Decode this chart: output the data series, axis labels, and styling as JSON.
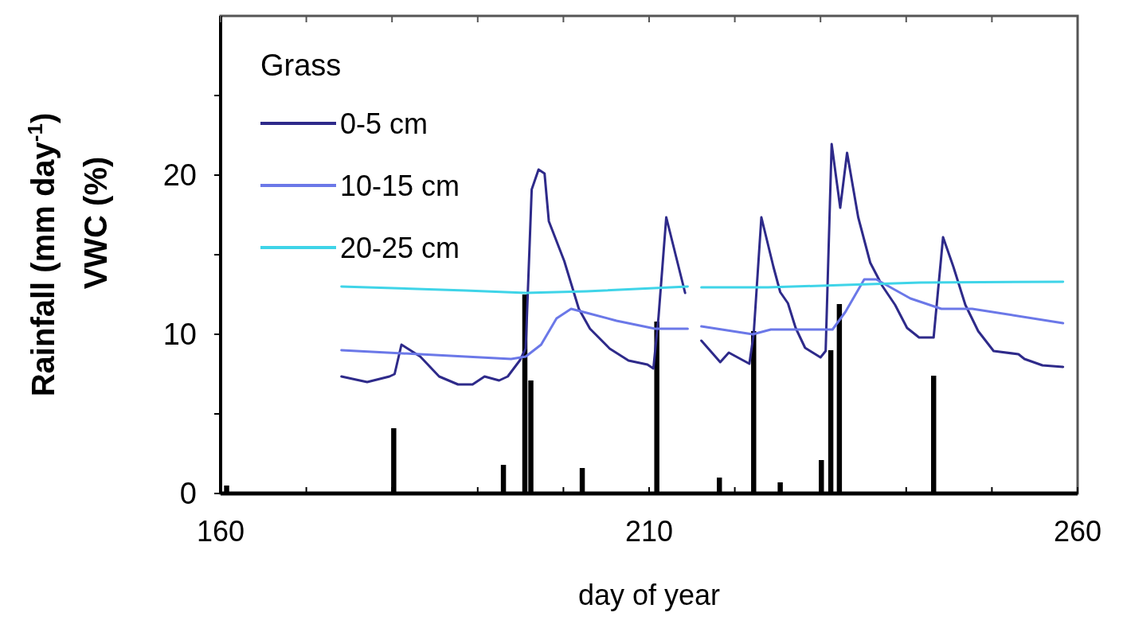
{
  "chart_data": {
    "type": "line",
    "legend_title": "Grass",
    "xlabel": "day of year",
    "ylabel": "Rainfall  (mm day$^{-1}$)\nVWC (%)",
    "xlim": [
      160,
      260
    ],
    "ylim": [
      0,
      30
    ],
    "xticks": [
      160,
      {
        "value": 170,
        "label": null
      },
      {
        "value": 180,
        "label": null
      },
      {
        "value": 190,
        "label": null
      },
      {
        "value": 200,
        "label": null
      },
      210,
      {
        "value": 220,
        "label": null
      },
      {
        "value": 230,
        "label": null
      },
      {
        "value": 240,
        "label": null
      },
      {
        "value": 250,
        "label": null
      },
      260
    ],
    "yticks": [
      0,
      {
        "value": 5,
        "label": null
      },
      10,
      {
        "value": 15,
        "label": null
      },
      20,
      {
        "value": 25,
        "label": null
      }
    ],
    "grid": false,
    "legend": "top left",
    "marker": "none",
    "line_style": "solid",
    "series": [
      {
        "type": "bar",
        "color": "#000000",
        "x": [
          160.7,
          180.2,
          193.0,
          195.5,
          196.2,
          202.2,
          210.9,
          218.2,
          222.2,
          225.3,
          230.1,
          231.2,
          232.2,
          243.2
        ],
        "values": [
          0.5,
          4.1,
          1.8,
          12.5,
          7.1,
          1.6,
          10.8,
          1.0,
          10.2,
          0.7,
          2.1,
          9.0,
          11.9,
          7.4
        ]
      },
      {
        "name": "0-5 cm",
        "color": "#2e2a8a",
        "x": [
          174.1,
          177.1,
          179.7,
          180.3,
          181.1,
          183.3,
          185.5,
          187.7,
          189.4,
          190.8,
          192.5,
          193.5,
          194.9,
          195.6,
          196.3,
          197.1,
          197.8,
          198.3,
          200.1,
          201.8,
          203.1,
          205.4,
          207.6,
          209.8,
          210.5,
          211.1,
          212.0,
          214.2,
          215.2,
          216.1,
          218.3,
          219.3,
          221.7,
          222.2,
          223.1,
          224.5,
          225.3,
          226.2,
          227.1,
          228.2,
          230.0,
          230.6,
          231.3,
          232.3,
          233.1,
          234.4,
          235.8,
          237.2,
          238.7,
          240.1,
          241.5,
          243.2,
          244.3,
          245.5,
          246.9,
          248.4,
          250.2,
          253.1,
          253.8,
          255.9,
          258.3
        ],
        "values": [
          7.35,
          7.0,
          7.35,
          7.5,
          9.35,
          8.6,
          7.35,
          6.85,
          6.85,
          7.35,
          7.1,
          7.35,
          8.35,
          9.1,
          19.1,
          20.35,
          20.1,
          17.1,
          14.6,
          11.6,
          10.35,
          9.1,
          8.35,
          8.1,
          7.85,
          11.1,
          17.35,
          12.6,
          null,
          9.6,
          8.25,
          8.85,
          8.15,
          10.0,
          17.35,
          14.25,
          12.65,
          11.95,
          10.4,
          9.15,
          8.55,
          8.95,
          21.95,
          17.95,
          21.4,
          17.35,
          14.5,
          13.05,
          11.85,
          10.4,
          9.8,
          9.8,
          16.1,
          14.25,
          11.85,
          10.2,
          8.95,
          8.75,
          8.45,
          8.05,
          7.95
        ]
      },
      {
        "name": "10-15 cm",
        "color": "#6b78e8",
        "x": [
          174.1,
          193.9,
          195.6,
          197.4,
          199.2,
          200.9,
          202.7,
          206.2,
          210.7,
          214.5,
          215.3,
          216.1,
          222.1,
          224.2,
          231.4,
          232.9,
          235.1,
          236.5,
          240.5,
          244.1,
          247.7,
          258.3
        ],
        "values": [
          9.0,
          8.45,
          8.6,
          9.35,
          11.0,
          11.6,
          11.35,
          10.85,
          10.35,
          10.35,
          null,
          10.5,
          10.0,
          10.3,
          10.3,
          11.4,
          13.45,
          13.45,
          12.25,
          11.6,
          11.6,
          10.7
        ]
      },
      {
        "name": "20-25 cm",
        "color": "#3fd4e8",
        "x": [
          174.1,
          188.6,
          195.6,
          202.7,
          214.5,
          215.3,
          216.1,
          223.9,
          232.8,
          241.6,
          258.3
        ],
        "values": [
          13.0,
          12.75,
          12.6,
          12.7,
          13.0,
          null,
          12.95,
          12.95,
          13.1,
          13.25,
          13.3
        ]
      }
    ]
  }
}
